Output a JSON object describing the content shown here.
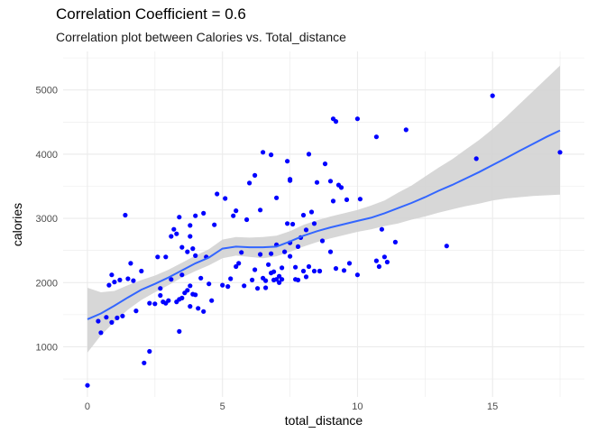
{
  "chart_data": {
    "type": "scatter",
    "title": "Correlation Coefficient = 0.6",
    "subtitle": "Correlation plot between Calories vs. Total_distance",
    "xlabel": "total_distance",
    "ylabel": "calories",
    "xlim": [
      -0.9,
      18.4
    ],
    "ylim": [
      220,
      5600
    ],
    "x_ticks": [
      0,
      5,
      10,
      15
    ],
    "y_ticks": [
      1000,
      2000,
      3000,
      4000,
      5000
    ],
    "grid": true,
    "colors": {
      "points": "#0000ff",
      "smooth_line": "#3366ff",
      "ribbon": "#d3d3d3",
      "grid": "#ebebeb"
    },
    "points": [
      [
        0.0,
        400
      ],
      [
        0.4,
        1400
      ],
      [
        0.5,
        1220
      ],
      [
        0.7,
        1460
      ],
      [
        0.8,
        1960
      ],
      [
        0.9,
        1380
      ],
      [
        0.9,
        2120
      ],
      [
        1.0,
        2010
      ],
      [
        1.1,
        1450
      ],
      [
        1.2,
        2040
      ],
      [
        1.3,
        1480
      ],
      [
        1.4,
        3050
      ],
      [
        1.5,
        2060
      ],
      [
        1.6,
        2300
      ],
      [
        1.7,
        2030
      ],
      [
        1.8,
        1560
      ],
      [
        2.0,
        2180
      ],
      [
        2.1,
        750
      ],
      [
        2.3,
        1680
      ],
      [
        2.3,
        930
      ],
      [
        2.5,
        1670
      ],
      [
        2.6,
        2400
      ],
      [
        2.7,
        1910
      ],
      [
        2.7,
        1800
      ],
      [
        2.8,
        1700
      ],
      [
        2.9,
        1680
      ],
      [
        2.9,
        2400
      ],
      [
        3.0,
        1720
      ],
      [
        3.1,
        2050
      ],
      [
        3.1,
        2720
      ],
      [
        3.2,
        2830
      ],
      [
        3.3,
        1700
      ],
      [
        3.3,
        2760
      ],
      [
        3.4,
        1240
      ],
      [
        3.4,
        3020
      ],
      [
        3.4,
        1740
      ],
      [
        3.5,
        1760
      ],
      [
        3.5,
        2550
      ],
      [
        3.5,
        2120
      ],
      [
        3.6,
        1840
      ],
      [
        3.7,
        2480
      ],
      [
        3.7,
        1880
      ],
      [
        3.8,
        1950
      ],
      [
        3.8,
        2890
      ],
      [
        3.8,
        1630
      ],
      [
        3.8,
        2720
      ],
      [
        3.9,
        1820
      ],
      [
        3.9,
        2530
      ],
      [
        4.0,
        2420
      ],
      [
        4.0,
        3040
      ],
      [
        4.0,
        1810
      ],
      [
        4.1,
        1600
      ],
      [
        4.2,
        2070
      ],
      [
        4.3,
        1550
      ],
      [
        4.3,
        3080
      ],
      [
        4.4,
        2400
      ],
      [
        4.5,
        1980
      ],
      [
        4.6,
        1720
      ],
      [
        4.7,
        2900
      ],
      [
        4.8,
        3380
      ],
      [
        5.0,
        1960
      ],
      [
        5.1,
        3310
      ],
      [
        5.2,
        1940
      ],
      [
        5.3,
        2060
      ],
      [
        5.4,
        3040
      ],
      [
        5.5,
        2250
      ],
      [
        5.5,
        3120
      ],
      [
        5.6,
        2300
      ],
      [
        5.7,
        2470
      ],
      [
        5.8,
        1950
      ],
      [
        5.9,
        2980
      ],
      [
        6.0,
        3550
      ],
      [
        6.1,
        2040
      ],
      [
        6.2,
        3670
      ],
      [
        6.2,
        2200
      ],
      [
        6.3,
        1910
      ],
      [
        6.4,
        2440
      ],
      [
        6.4,
        3130
      ],
      [
        6.5,
        4030
      ],
      [
        6.5,
        2070
      ],
      [
        6.6,
        1920
      ],
      [
        6.6,
        2030
      ],
      [
        6.7,
        2280
      ],
      [
        6.8,
        3990
      ],
      [
        6.8,
        2450
      ],
      [
        6.8,
        2150
      ],
      [
        6.9,
        2040
      ],
      [
        6.9,
        2170
      ],
      [
        7.0,
        3320
      ],
      [
        7.0,
        2590
      ],
      [
        7.0,
        2050
      ],
      [
        7.1,
        2100
      ],
      [
        7.1,
        2000
      ],
      [
        7.2,
        2050
      ],
      [
        7.2,
        2230
      ],
      [
        7.3,
        2480
      ],
      [
        7.4,
        2920
      ],
      [
        7.4,
        3890
      ],
      [
        7.5,
        3610
      ],
      [
        7.5,
        2410
      ],
      [
        7.5,
        3590
      ],
      [
        7.5,
        2620
      ],
      [
        7.6,
        2910
      ],
      [
        7.7,
        2240
      ],
      [
        7.7,
        2050
      ],
      [
        7.8,
        2040
      ],
      [
        7.8,
        2560
      ],
      [
        7.9,
        2700
      ],
      [
        8.0,
        2180
      ],
      [
        8.0,
        3050
      ],
      [
        8.1,
        2820
      ],
      [
        8.1,
        2090
      ],
      [
        8.2,
        4000
      ],
      [
        8.2,
        2250
      ],
      [
        8.3,
        3100
      ],
      [
        8.4,
        2920
      ],
      [
        8.4,
        2180
      ],
      [
        8.5,
        3560
      ],
      [
        8.6,
        2180
      ],
      [
        8.6,
        2180
      ],
      [
        8.7,
        2650
      ],
      [
        8.8,
        3850
      ],
      [
        9.0,
        3580
      ],
      [
        9.0,
        2480
      ],
      [
        9.1,
        4550
      ],
      [
        9.1,
        3270
      ],
      [
        9.2,
        4510
      ],
      [
        9.2,
        2220
      ],
      [
        9.3,
        3520
      ],
      [
        9.4,
        3480
      ],
      [
        9.5,
        2190
      ],
      [
        9.6,
        3290
      ],
      [
        9.7,
        2300
      ],
      [
        10.0,
        4550
      ],
      [
        10.0,
        2120
      ],
      [
        10.1,
        3300
      ],
      [
        10.7,
        2340
      ],
      [
        10.7,
        4270
      ],
      [
        10.8,
        2250
      ],
      [
        10.9,
        2830
      ],
      [
        11.0,
        2400
      ],
      [
        11.1,
        2320
      ],
      [
        11.4,
        2630
      ],
      [
        11.8,
        4380
      ],
      [
        13.3,
        2570
      ],
      [
        14.4,
        3930
      ],
      [
        15.0,
        4910
      ],
      [
        17.5,
        4030
      ]
    ],
    "smooth": {
      "x": [
        0.0,
        0.5,
        1.0,
        1.5,
        2.0,
        2.5,
        3.0,
        3.5,
        4.0,
        4.5,
        5.0,
        5.5,
        6.0,
        6.5,
        7.0,
        7.5,
        8.0,
        8.5,
        9.0,
        9.5,
        10.0,
        10.5,
        11.0,
        11.5,
        12.0,
        12.5,
        13.0,
        13.5,
        14.0,
        14.5,
        15.0,
        15.5,
        16.0,
        16.5,
        17.0,
        17.5
      ],
      "y": [
        1430,
        1520,
        1640,
        1770,
        1890,
        1980,
        2080,
        2190,
        2300,
        2390,
        2530,
        2560,
        2550,
        2550,
        2560,
        2640,
        2730,
        2800,
        2860,
        2910,
        2960,
        3010,
        3080,
        3160,
        3240,
        3330,
        3430,
        3520,
        3620,
        3720,
        3830,
        3940,
        4050,
        4160,
        4270,
        4370
      ],
      "lower": [
        910,
        1180,
        1390,
        1580,
        1730,
        1850,
        1960,
        2080,
        2180,
        2270,
        2380,
        2420,
        2400,
        2380,
        2410,
        2480,
        2560,
        2630,
        2690,
        2740,
        2790,
        2830,
        2880,
        2920,
        2980,
        3030,
        3090,
        3140,
        3190,
        3230,
        3280,
        3310,
        3330,
        3350,
        3360,
        3370
      ],
      "upper": [
        1920,
        1850,
        1870,
        1960,
        2040,
        2110,
        2200,
        2310,
        2420,
        2520,
        2670,
        2710,
        2700,
        2710,
        2730,
        2800,
        2900,
        2970,
        3030,
        3080,
        3130,
        3200,
        3280,
        3400,
        3510,
        3650,
        3790,
        3920,
        4070,
        4220,
        4390,
        4580,
        4780,
        4980,
        5180,
        5380
      ]
    }
  }
}
